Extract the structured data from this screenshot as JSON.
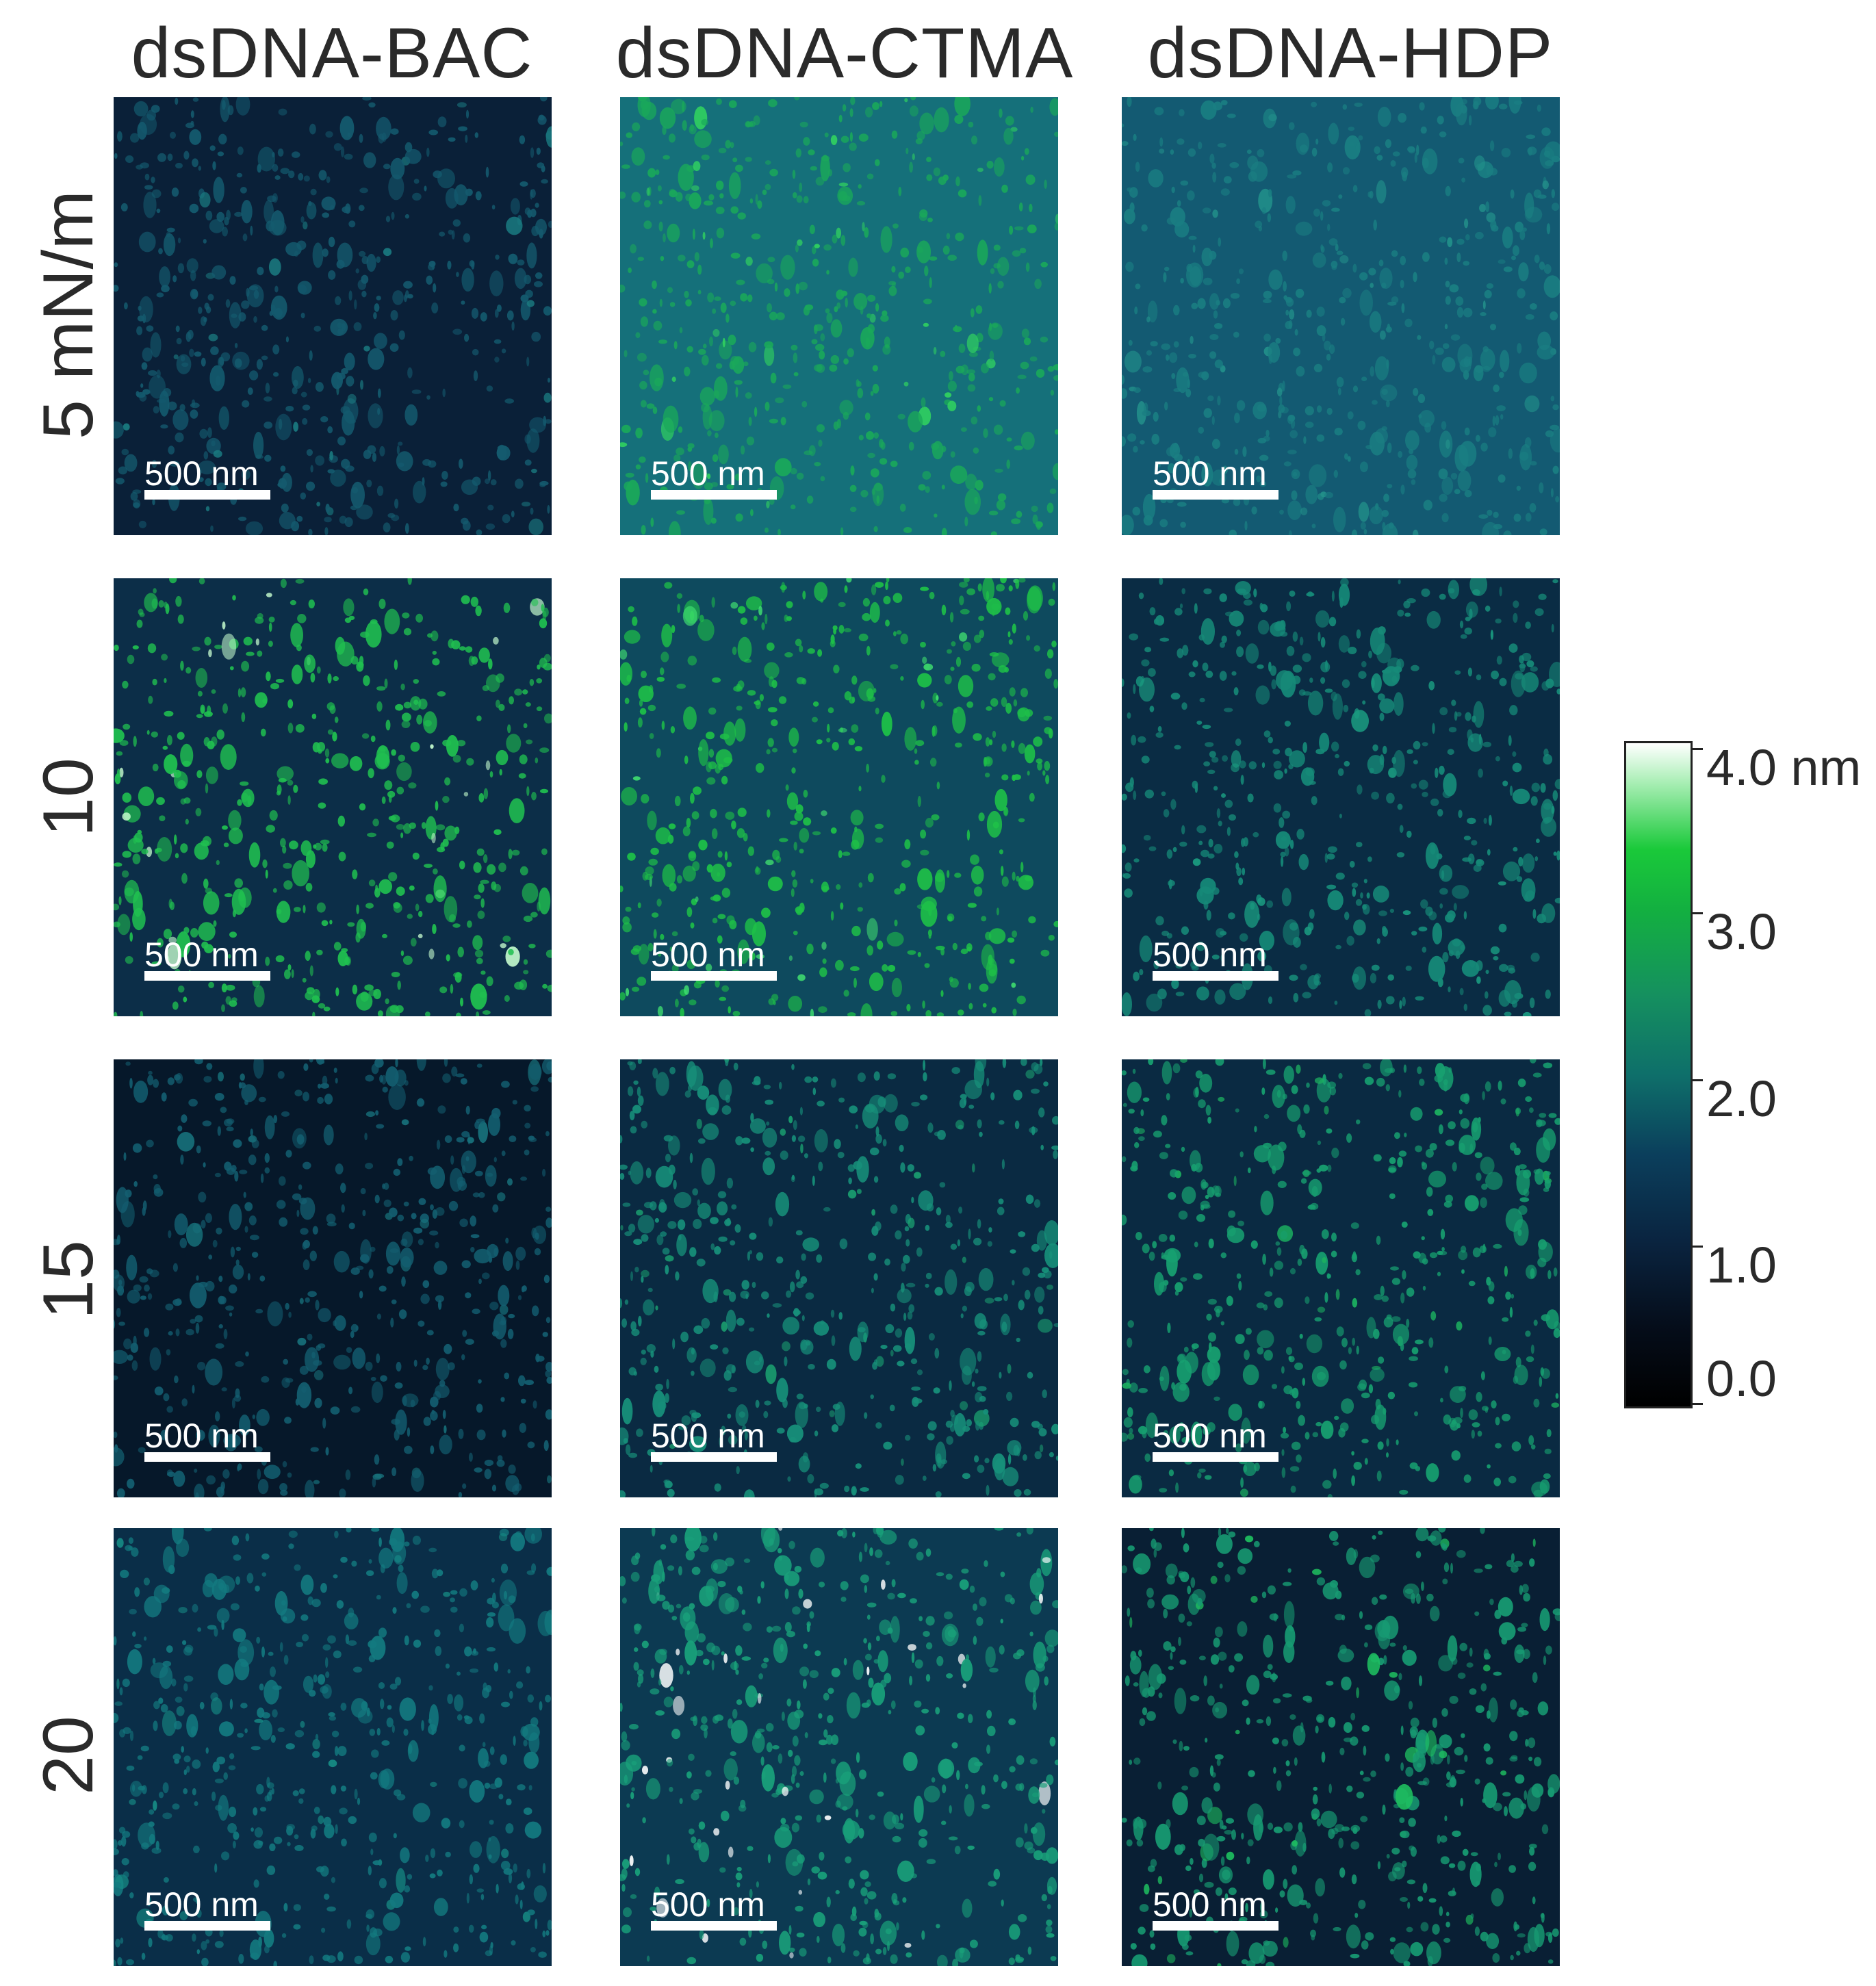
{
  "columns": [
    "dsDNA-BAC",
    "dsDNA-CTMA",
    "dsDNA-HDP"
  ],
  "rows": [
    "5 mN/m",
    "10 mN/m",
    "15 mN/m",
    "20 mN/m"
  ],
  "scale_bar_label": "500 nm",
  "colorbar": {
    "unit_label": "4.0 nm",
    "ticks": [
      "3.0",
      "2.0",
      "1.0",
      "0.0"
    ],
    "range_nm": [
      0.0,
      4.0
    ],
    "colors": [
      "#000000",
      "#0b3f5c",
      "#15905f",
      "#1ac93a",
      "#ffffff"
    ]
  },
  "tiles": [
    {
      "row": 0,
      "col": 0,
      "base": "#0a2038",
      "feature": "#145a6e",
      "highlight": "#1a7a80"
    },
    {
      "row": 0,
      "col": 1,
      "base": "#15707a",
      "feature": "#1aa85a",
      "highlight": "#30d060"
    },
    {
      "row": 0,
      "col": 2,
      "base": "#135a72",
      "feature": "#1a7e82",
      "highlight": "#22908a"
    },
    {
      "row": 1,
      "col": 0,
      "base": "#0c2e48",
      "feature": "#20c050",
      "highlight": "#c8ffd0"
    },
    {
      "row": 1,
      "col": 1,
      "base": "#0e4a5e",
      "feature": "#1ec048",
      "highlight": "#40e070"
    },
    {
      "row": 1,
      "col": 2,
      "base": "#0a2c44",
      "feature": "#168a78",
      "highlight": "#1a9a80"
    },
    {
      "row": 2,
      "col": 0,
      "base": "#06182a",
      "feature": "#135e70",
      "highlight": "#17707a"
    },
    {
      "row": 2,
      "col": 1,
      "base": "#0a2a42",
      "feature": "#17907a",
      "highlight": "#1aa070"
    },
    {
      "row": 2,
      "col": 2,
      "base": "#0a2a42",
      "feature": "#17a070",
      "highlight": "#1cb060"
    },
    {
      "row": 3,
      "col": 0,
      "base": "#0a2e48",
      "feature": "#137a80",
      "highlight": "#168a84"
    },
    {
      "row": 3,
      "col": 1,
      "base": "#0c3a52",
      "feature": "#19a07a",
      "highlight": "#ffffff"
    },
    {
      "row": 3,
      "col": 2,
      "base": "#091f34",
      "feature": "#179a72",
      "highlight": "#1ec060"
    }
  ]
}
